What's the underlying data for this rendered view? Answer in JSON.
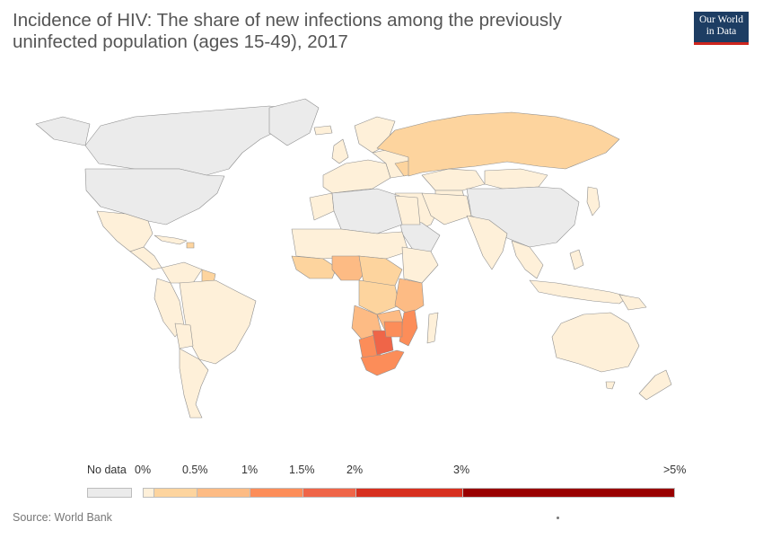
{
  "header": {
    "title": "Incidence of HIV: The share of new infections among the previously uninfected population (ages 15-49), 2017",
    "logo_line1": "Our World",
    "logo_line2": "in Data"
  },
  "legend": {
    "no_data_label": "No data",
    "no_data_color": "#ebebeb",
    "ticks": [
      "0%",
      "0.5%",
      "1%",
      "1.5%",
      "2%",
      "3%",
      ">5%"
    ],
    "bins": [
      {
        "from": 0,
        "to": 0.1,
        "color": "#fef0d9"
      },
      {
        "from": 0.1,
        "to": 0.5,
        "color": "#fdd49e"
      },
      {
        "from": 0.5,
        "to": 1,
        "color": "#fdbb84"
      },
      {
        "from": 1,
        "to": 1.5,
        "color": "#fc8d59"
      },
      {
        "from": 1.5,
        "to": 2,
        "color": "#ef6548"
      },
      {
        "from": 2,
        "to": 3,
        "color": "#d7301f"
      },
      {
        "from": 3,
        "to": 5,
        "color": "#990000"
      }
    ]
  },
  "map": {
    "ocean_color": "#ffffff",
    "country_colors": {
      "no_data": "#ebebeb",
      "very_low": "#fef0d9",
      "low": "#fdd49e",
      "medium": "#fdbb84",
      "high": "#fc8d59",
      "higher": "#ef6548"
    }
  },
  "footer": {
    "source": "Source: World Bank"
  }
}
